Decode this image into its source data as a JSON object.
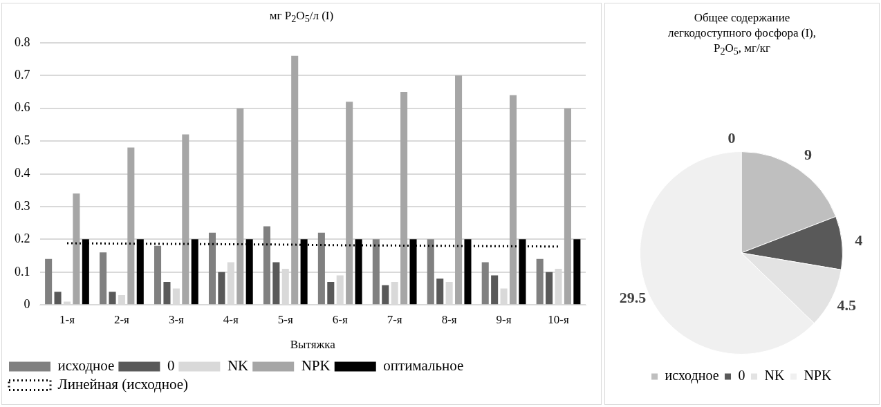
{
  "chart_data": [
    {
      "type": "bar",
      "title": "мг P$_{2}$O$_{5}$/л (I)",
      "xlabel": "Вытяжка",
      "categories": [
        "1-я",
        "2-я",
        "3-я",
        "4-я",
        "5-я",
        "6-я",
        "7-я",
        "8-я",
        "9-я",
        "10-я"
      ],
      "series": [
        {
          "name": "исходное",
          "color": "#808080",
          "values": [
            0.14,
            0.16,
            0.18,
            0.22,
            0.24,
            0.22,
            0.2,
            0.2,
            0.13,
            0.14
          ]
        },
        {
          "name": "0",
          "color": "#595959",
          "values": [
            0.04,
            0.04,
            0.07,
            0.1,
            0.13,
            0.07,
            0.06,
            0.08,
            0.09,
            0.1
          ]
        },
        {
          "name": "NK",
          "color": "#d9d9d9",
          "values": [
            0.01,
            0.03,
            0.05,
            0.13,
            0.11,
            0.09,
            0.07,
            0.07,
            0.05,
            0.11
          ]
        },
        {
          "name": "NPK",
          "color": "#a6a6a6",
          "values": [
            0.34,
            0.48,
            0.52,
            0.6,
            0.76,
            0.62,
            0.65,
            0.7,
            0.64,
            0.6
          ]
        },
        {
          "name": "оптимальное",
          "color": "#000000",
          "values": [
            0.2,
            0.2,
            0.2,
            0.2,
            0.2,
            0.2,
            0.2,
            0.2,
            0.2,
            0.2
          ]
        },
        {
          "name": "Линейная (исходное)",
          "type": "line",
          "color": "#000000",
          "line_style": "dotted",
          "values": [
            0.188,
            0.187,
            0.186,
            0.185,
            0.184,
            0.182,
            0.181,
            0.18,
            0.179,
            0.178
          ]
        }
      ],
      "ylim": [
        0,
        0.8
      ],
      "yticks": [
        0,
        0.1,
        0.2,
        0.3,
        0.4,
        0.5,
        0.6,
        0.7,
        0.8
      ],
      "grid": "y",
      "legend": "bottom",
      "marker": "none"
    },
    {
      "type": "pie",
      "title": "Общее содержание легкодоступного фосфора (I), P$_{2}$O$_{5}$, мг/кг",
      "categories": [
        "исходное",
        "0",
        "NK",
        "NPK"
      ],
      "values": [
        9,
        4,
        4.5,
        29.5
      ],
      "colors": [
        "#bfbfbf",
        "#595959",
        "#e3e3e3",
        "#f0f0f0"
      ],
      "data_labels": true,
      "legend": "bottom",
      "annotations": [
        "0"
      ]
    }
  ]
}
